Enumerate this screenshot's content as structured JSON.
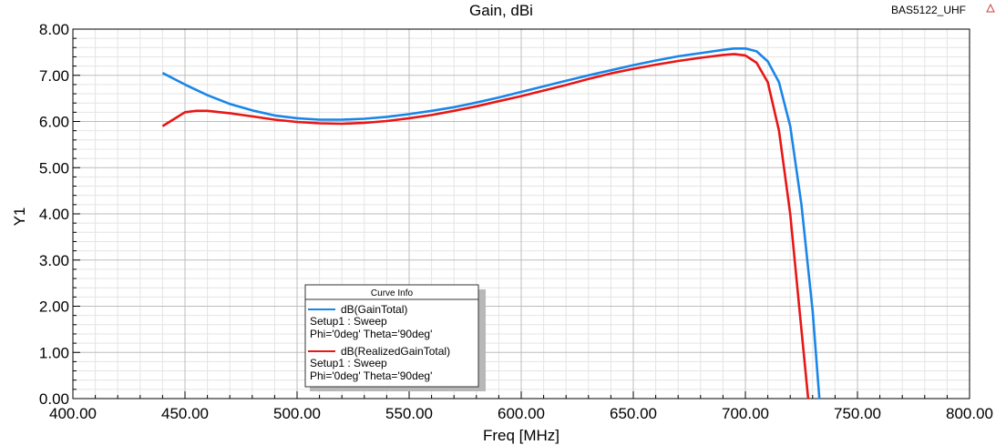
{
  "header": {
    "title": "Gain, dBi",
    "project": "BAS5122_UHF"
  },
  "legend": {
    "title": "Curve Info",
    "entries": [
      {
        "name": "dB(GainTotal)",
        "line2": "Setup1 : Sweep",
        "line3": "Phi='0deg' Theta='90deg'",
        "color": "#1a86e8"
      },
      {
        "name": "dB(RealizedGainTotal)",
        "line2": "Setup1 : Sweep",
        "line3": "Phi='0deg' Theta='90deg'",
        "color": "#e81616"
      }
    ]
  },
  "chart_data": {
    "type": "line",
    "title": "Gain, dBi",
    "xlabel": "Freq [MHz]",
    "ylabel": "Y1",
    "xlim": [
      400,
      800
    ],
    "ylim": [
      0,
      8
    ],
    "grid": true,
    "legend_position": "bottom-left",
    "x_ticks": [
      "400.00",
      "450.00",
      "500.00",
      "550.00",
      "600.00",
      "650.00",
      "700.00",
      "750.00",
      "800.00"
    ],
    "y_ticks": [
      "0.00",
      "1.00",
      "2.00",
      "3.00",
      "4.00",
      "5.00",
      "6.00",
      "7.00",
      "8.00"
    ],
    "series": [
      {
        "name": "dB(GainTotal)",
        "color": "#1a86e8",
        "x": [
          440,
          450,
          460,
          470,
          480,
          490,
          500,
          510,
          520,
          530,
          540,
          550,
          560,
          570,
          580,
          590,
          600,
          610,
          620,
          630,
          640,
          650,
          660,
          670,
          680,
          690,
          695,
          700,
          705,
          710,
          715,
          720,
          725,
          730,
          733
        ],
        "y": [
          7.05,
          6.8,
          6.57,
          6.38,
          6.24,
          6.13,
          6.07,
          6.04,
          6.04,
          6.06,
          6.1,
          6.16,
          6.23,
          6.31,
          6.41,
          6.52,
          6.64,
          6.76,
          6.88,
          7.0,
          7.11,
          7.22,
          7.32,
          7.41,
          7.48,
          7.55,
          7.58,
          7.58,
          7.52,
          7.3,
          6.85,
          5.9,
          4.2,
          1.9,
          0.0
        ]
      },
      {
        "name": "dB(RealizedGainTotal)",
        "color": "#e81616",
        "x": [
          440,
          445,
          450,
          455,
          460,
          470,
          480,
          490,
          500,
          510,
          520,
          530,
          540,
          550,
          560,
          570,
          580,
          590,
          600,
          610,
          620,
          630,
          640,
          650,
          660,
          670,
          680,
          690,
          695,
          700,
          705,
          710,
          715,
          720,
          724,
          728
        ],
        "y": [
          5.9,
          6.05,
          6.2,
          6.23,
          6.23,
          6.18,
          6.11,
          6.04,
          5.99,
          5.96,
          5.95,
          5.97,
          6.01,
          6.07,
          6.14,
          6.23,
          6.33,
          6.44,
          6.55,
          6.67,
          6.79,
          6.92,
          7.04,
          7.14,
          7.23,
          7.31,
          7.38,
          7.44,
          7.46,
          7.43,
          7.27,
          6.85,
          5.8,
          4.0,
          2.0,
          0.0
        ]
      }
    ]
  }
}
